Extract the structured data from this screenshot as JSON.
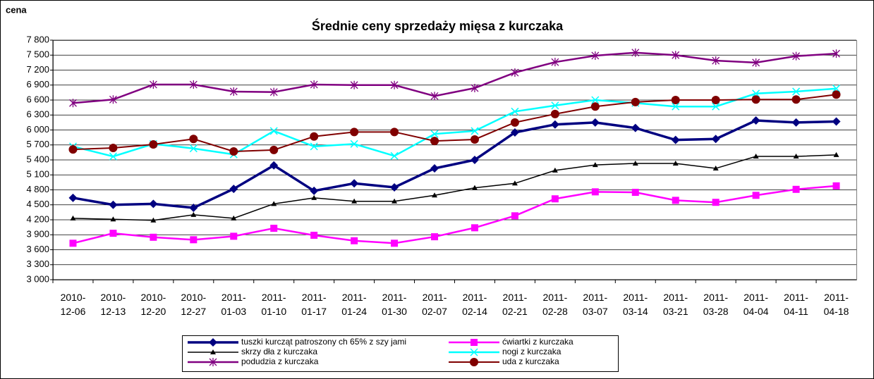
{
  "chart_data": {
    "type": "line",
    "title": "Średnie ceny sprzedaży mięsa z kurczaka",
    "y_axis_label": "cena",
    "categories": [
      "2010-\n12-06",
      "2010-\n12-13",
      "2010-\n12-20",
      "2010-\n12-27",
      "2011-\n01-03",
      "2011-\n01-10",
      "2011-\n01-17",
      "2011-\n01-24",
      "2011-\n01-30",
      "2011-\n02-07",
      "2011-\n02-14",
      "2011-\n02-21",
      "2011-\n02-28",
      "2011-\n03-07",
      "2011-\n03-14",
      "2011-\n03-21",
      "2011-\n03-28",
      "2011-\n04-04",
      "2011-\n04-11",
      "2011-\n04-18"
    ],
    "series": [
      {
        "name": "tuszki kurcząt patroszony ch 65% z szy jami",
        "color": "#000080",
        "marker": "diamond",
        "values": [
          4640,
          4500,
          4520,
          4440,
          4820,
          5290,
          4780,
          4930,
          4850,
          5230,
          5400,
          5950,
          6110,
          6150,
          6040,
          5800,
          5820,
          6190,
          6150,
          6170
        ]
      },
      {
        "name": "ćwiartki z kurczaka",
        "color": "#ff00ff",
        "marker": "square",
        "values": [
          3730,
          3930,
          3850,
          3800,
          3870,
          4030,
          3890,
          3780,
          3730,
          3860,
          4040,
          4280,
          4620,
          4760,
          4750,
          4590,
          4550,
          4690,
          4810,
          4880
        ]
      },
      {
        "name": "skrzy dła z kurczaka",
        "color": "#000000",
        "marker": "triangle",
        "values": [
          4230,
          4210,
          4190,
          4300,
          4230,
          4520,
          4640,
          4570,
          4570,
          4690,
          4840,
          4930,
          5190,
          5300,
          5330,
          5330,
          5230,
          5470,
          5470,
          5500
        ]
      },
      {
        "name": "nogi z kurczaka",
        "color": "#00ffff",
        "marker": "x",
        "values": [
          5670,
          5470,
          5720,
          5630,
          5510,
          5980,
          5670,
          5720,
          5480,
          5920,
          5980,
          6370,
          6490,
          6600,
          6540,
          6470,
          6470,
          6730,
          6770,
          6830
        ]
      },
      {
        "name": "podudzia z kurczaka",
        "color": "#800080",
        "marker": "star",
        "values": [
          6540,
          6610,
          6910,
          6910,
          6770,
          6760,
          6910,
          6900,
          6900,
          6680,
          6840,
          7150,
          7360,
          7490,
          7550,
          7500,
          7390,
          7350,
          7480,
          7530
        ]
      },
      {
        "name": "uda z kurczaka",
        "color": "#800000",
        "marker": "circle",
        "values": [
          5610,
          5640,
          5710,
          5820,
          5570,
          5600,
          5870,
          5960,
          5960,
          5780,
          5810,
          6150,
          6320,
          6470,
          6560,
          6600,
          6600,
          6610,
          6610,
          6710
        ]
      }
    ],
    "ylim": [
      3000,
      7800
    ],
    "yticks": [
      {
        "value": 3000,
        "label": "3 000"
      },
      {
        "value": 3300,
        "label": "3 300"
      },
      {
        "value": 3600,
        "label": "3 600"
      },
      {
        "value": 3900,
        "label": "3 900"
      },
      {
        "value": 4200,
        "label": "4 200"
      },
      {
        "value": 4500,
        "label": "4 500"
      },
      {
        "value": 4800,
        "label": "4 800"
      },
      {
        "value": 5100,
        "label": "5 100"
      },
      {
        "value": 5400,
        "label": "5 400"
      },
      {
        "value": 5700,
        "label": "5 700"
      },
      {
        "value": 6000,
        "label": "6 000"
      },
      {
        "value": 6300,
        "label": "6 300"
      },
      {
        "value": 6600,
        "label": "6 600"
      },
      {
        "value": 6900,
        "label": "6 900"
      },
      {
        "value": 7200,
        "label": "7 200"
      },
      {
        "value": 7500,
        "label": "7 500"
      },
      {
        "value": 7800,
        "label": "7 800"
      }
    ],
    "grid": true,
    "legend": "bottom"
  }
}
